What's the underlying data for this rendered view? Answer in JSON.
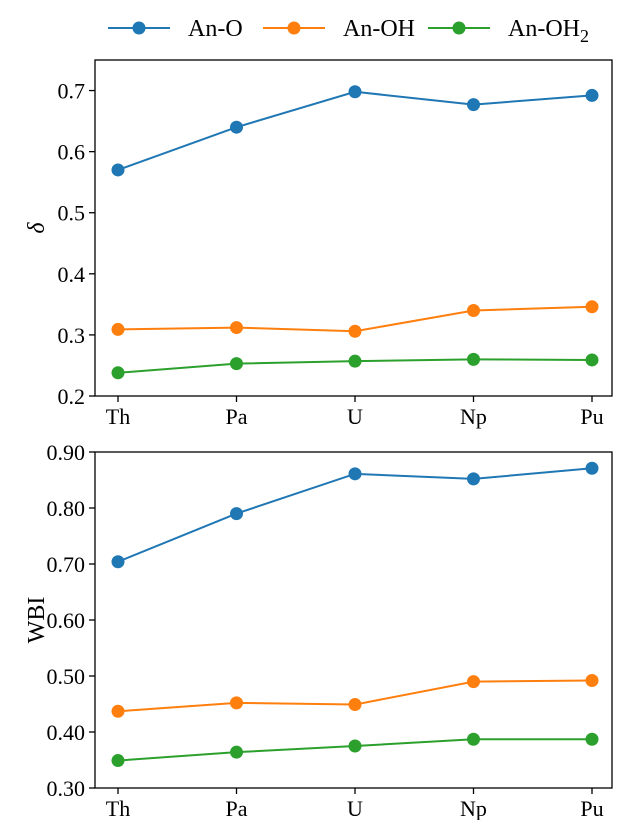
{
  "legend": {
    "placement": "top",
    "entries": [
      {
        "label": "An-O",
        "color": "#1f77b4"
      },
      {
        "label": "An-OH",
        "color": "#ff7f0e"
      },
      {
        "label": "An-OH",
        "sub": "2",
        "color": "#2ca02c"
      }
    ]
  },
  "chart_data": [
    {
      "type": "line",
      "categories": [
        "Th",
        "Pa",
        "U",
        "Np",
        "Pu"
      ],
      "ylabel": "δ",
      "ylim": [
        0.2,
        0.75
      ],
      "yticks": [
        "0.2",
        "0.3",
        "0.4",
        "0.5",
        "0.6",
        "0.7"
      ],
      "grid": false,
      "series": [
        {
          "name": "An-O",
          "color": "#1f77b4",
          "values": [
            0.57,
            0.64,
            0.698,
            0.677,
            0.692
          ]
        },
        {
          "name": "An-OH",
          "color": "#ff7f0e",
          "values": [
            0.309,
            0.312,
            0.306,
            0.34,
            0.346
          ]
        },
        {
          "name": "An-OH2",
          "color": "#2ca02c",
          "values": [
            0.238,
            0.253,
            0.257,
            0.26,
            0.259
          ]
        }
      ]
    },
    {
      "type": "line",
      "categories": [
        "Th",
        "Pa",
        "U",
        "Np",
        "Pu"
      ],
      "ylabel": "WBI",
      "ylim": [
        0.3,
        0.9
      ],
      "yticks": [
        "0.30",
        "0.40",
        "0.50",
        "0.60",
        "0.70",
        "0.80",
        "0.90"
      ],
      "grid": false,
      "series": [
        {
          "name": "An-O",
          "color": "#1f77b4",
          "values": [
            0.704,
            0.79,
            0.861,
            0.852,
            0.871
          ]
        },
        {
          "name": "An-OH",
          "color": "#ff7f0e",
          "values": [
            0.437,
            0.452,
            0.449,
            0.49,
            0.492
          ]
        },
        {
          "name": "An-OH2",
          "color": "#2ca02c",
          "values": [
            0.349,
            0.364,
            0.375,
            0.387,
            0.387
          ]
        }
      ]
    }
  ]
}
